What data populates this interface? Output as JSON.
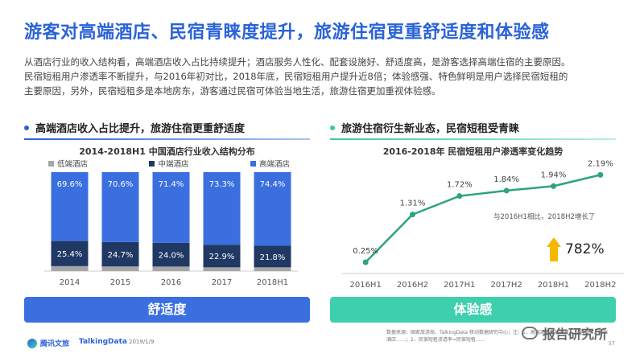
{
  "title": "游客对高端酒店、民宿青睐度提升，旅游住宿更重舒适度和体验感",
  "paragraph": {
    "line1": "从酒店行业的收入结构看，高端酒店收入占比持续提升；酒店服务人性化、配套设施好、舒适度高，是游客选择高端住宿的主要原因。",
    "line2": "民宿短租用户渗透率不断提升，与2016年初对比，2018年底，民宿短租用户提升近8倍；体验感强、特色鲜明是用户选择民宿短租的",
    "line3": "主要原因，另外，民宿短租多是本地房东，游客通过民宿可体验当地生活，旅游住宿更加重视体验感。"
  },
  "left_section": {
    "heading": "高端酒店收入占比提升，旅游住宿更重舒适度",
    "banner": "舒适度"
  },
  "right_section": {
    "heading": "旅游住宿衍生新业态，民宿短租受青睐",
    "banner": "体验感",
    "annotation": "与2016H1相比，2018H2增长了",
    "annotation_value": "782%"
  },
  "colors": {
    "accent_blue": "#2a63d8",
    "bar_low": "#a6a6a6",
    "bar_mid": "#203864",
    "bar_high": "#3b6fe0",
    "line_green": "#2ea47a",
    "banner_teal": "#3ecfae",
    "arrow_yellow": "#f5b800"
  },
  "chart_data": [
    {
      "type": "bar",
      "stacked": true,
      "title": "2014-2018H1 中国酒店行业收入结构分布",
      "categories": [
        "2014",
        "2015",
        "2016",
        "2017",
        "2018H1"
      ],
      "series": [
        {
          "name": "低端酒店",
          "values": [
            5.0,
            4.7,
            4.6,
            3.8,
            3.8
          ]
        },
        {
          "name": "中端酒店",
          "values": [
            25.4,
            24.7,
            24.0,
            22.9,
            21.8
          ]
        },
        {
          "name": "高端酒店",
          "values": [
            69.6,
            70.6,
            71.4,
            73.3,
            74.4
          ]
        }
      ],
      "data_labels": {
        "中端酒店": [
          "25.4%",
          "24.7%",
          "24.0%",
          "22.9%",
          "21.8%"
        ],
        "高端酒店": [
          "69.6%",
          "70.6%",
          "71.4%",
          "73.3%",
          "74.4%"
        ]
      },
      "ylim": [
        0,
        100
      ],
      "legend_position": "top",
      "grid": false
    },
    {
      "type": "line",
      "title": "2016-2018年 民宿短租用户渗透率变化趋势",
      "categories": [
        "2016H1",
        "2016H2",
        "2017H1",
        "2017H2",
        "2018H1",
        "2018H2"
      ],
      "values": [
        0.25,
        1.31,
        1.72,
        1.84,
        1.94,
        2.19
      ],
      "data_labels": [
        "0.25%",
        "1.31%",
        "1.72%",
        "1.84%",
        "1.94%",
        "2.19%"
      ],
      "ylim": [
        0,
        2.5
      ],
      "grid": false
    }
  ],
  "source": "数据来源：国家旅游局、TalkingData 移动数据研究中心；注：1、高端酒店包括四星、五星酒店，中端酒店……；2、民宿短租渗透率=民宿短租……",
  "footer": {
    "logo1": "腾讯文旅",
    "logo2": "TalkingData",
    "date": "2019/1/9",
    "page": "57",
    "watermark": "报告研究所"
  }
}
